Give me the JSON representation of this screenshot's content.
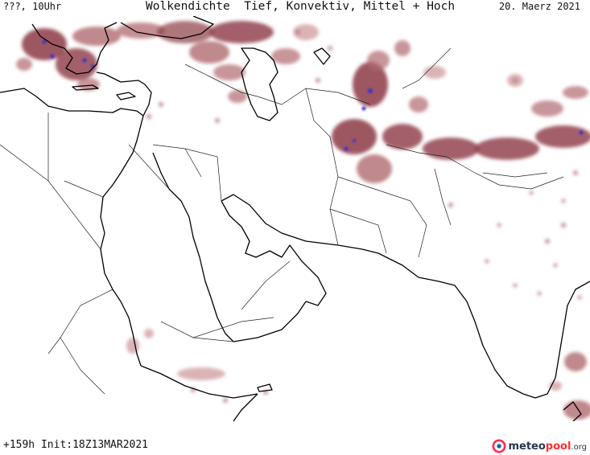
{
  "header": {
    "left_label": "???, 10Uhr",
    "title": "Wolkendichte  Tief, Konvektiv, Mittel + Hoch",
    "date": "20. Maerz 2021"
  },
  "footer": {
    "run_info": "+159h Init:18Z13MAR2021",
    "logo": {
      "part1": "meteo",
      "part2": "pool",
      "part3": ".org"
    }
  },
  "colors": {
    "cloud_dense": "#8c3a45",
    "cloud_medium": "#b06a70",
    "cloud_light": "#d2a0a4",
    "convective": "#3b2fd8",
    "coastline": "#000000",
    "border": "#222222",
    "logo_ring": "#ff2d55"
  }
}
